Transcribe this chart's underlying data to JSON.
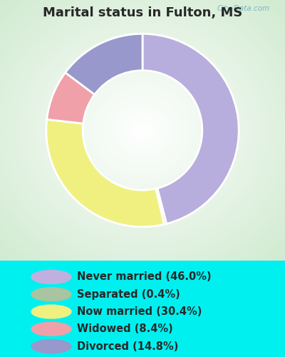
{
  "title": "Marital status in Fulton, MS",
  "slices": [
    46.0,
    0.4,
    30.4,
    8.4,
    14.8
  ],
  "labels": [
    "Never married (46.0%)",
    "Separated (0.4%)",
    "Now married (30.4%)",
    "Widowed (8.4%)",
    "Divorced (14.8%)"
  ],
  "colors": [
    "#b8aedd",
    "#a8c4a0",
    "#f0f080",
    "#f0a0a8",
    "#9898cc"
  ],
  "legend_colors": [
    "#c0b0e0",
    "#a8c4a0",
    "#f0f080",
    "#f0a0a8",
    "#9898cc"
  ],
  "bg_cyan": "#00f0f0",
  "bg_chart_center": "#ffffff",
  "bg_chart_edge": "#d0ecd0",
  "title_color": "#282828",
  "title_fontsize": 13,
  "legend_fontsize": 10.5,
  "watermark": "City-Data.com"
}
